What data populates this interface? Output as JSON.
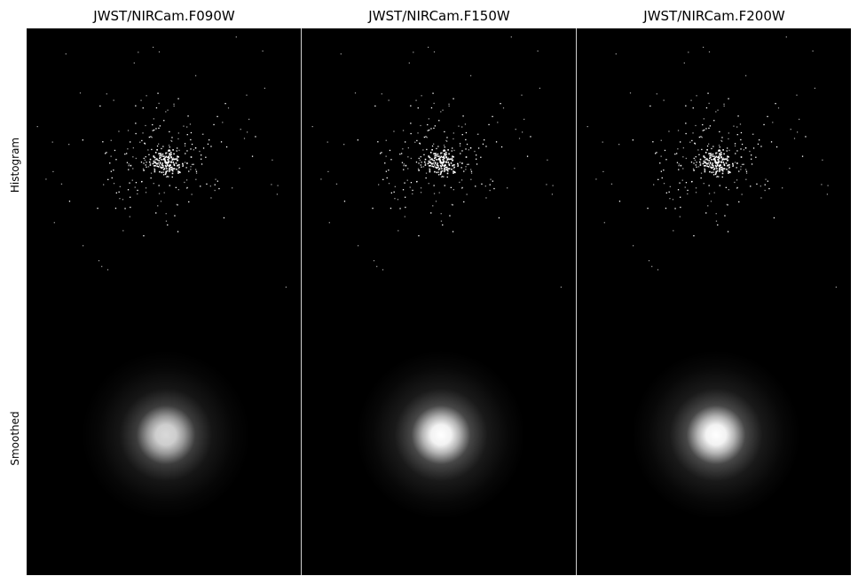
{
  "chart_data": {
    "type": "image-grid",
    "columns": [
      "JWST/NIRCam.F090W",
      "JWST/NIRCam.F150W",
      "JWST/NIRCam.F200W"
    ],
    "rows": [
      "Histogram",
      "Smoothed"
    ],
    "background_color": "#000000",
    "foreground_color": "#ffffff",
    "smoothed_peak_brightness": [
      0.85,
      1.0,
      1.0
    ]
  }
}
